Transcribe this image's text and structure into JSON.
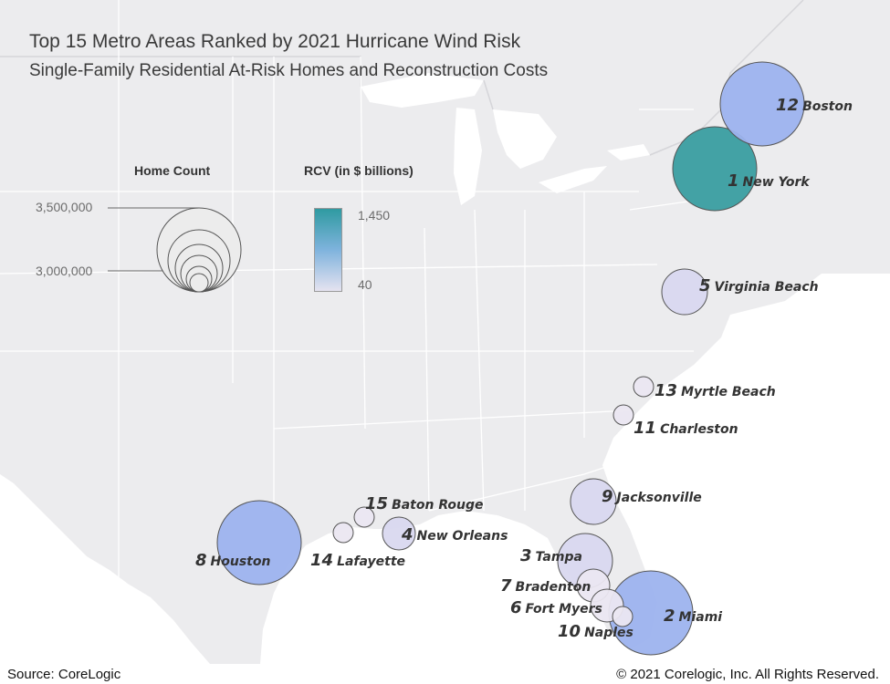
{
  "title": "Top 15 Metro Areas Ranked by 2021 Hurricane Wind Risk",
  "subtitle": "Single-Family Residential At-Risk Homes and Reconstruction Costs",
  "legend": {
    "home_count_title": "Home Count",
    "home_count_max": "3,500,000",
    "home_count_min": "3,000,000",
    "rcv_title": "RCV (in $ billions)",
    "rcv_max": "1,450",
    "rcv_min": "40",
    "color_high": "#2e9aa0",
    "color_mid": "#9aaeea",
    "color_low": "#e6e3f0"
  },
  "metros": [
    {
      "rank": "1",
      "name": "New York",
      "tone": "teal"
    },
    {
      "rank": "2",
      "name": "Miami",
      "tone": "blue"
    },
    {
      "rank": "3",
      "name": "Tampa",
      "tone": "lavender"
    },
    {
      "rank": "4",
      "name": "New Orleans",
      "tone": "lavender"
    },
    {
      "rank": "5",
      "name": "Virginia Beach",
      "tone": "lavender"
    },
    {
      "rank": "6",
      "name": "Fort Myers",
      "tone": "pale"
    },
    {
      "rank": "7",
      "name": "Bradenton",
      "tone": "pale"
    },
    {
      "rank": "8",
      "name": "Houston",
      "tone": "blue"
    },
    {
      "rank": "9",
      "name": "Jacksonville",
      "tone": "lavender"
    },
    {
      "rank": "10",
      "name": "Naples",
      "tone": "pale"
    },
    {
      "rank": "11",
      "name": "Charleston",
      "tone": "pale"
    },
    {
      "rank": "12",
      "name": "Boston",
      "tone": "blue"
    },
    {
      "rank": "13",
      "name": "Myrtle Beach",
      "tone": "pale"
    },
    {
      "rank": "14",
      "name": "Lafayette",
      "tone": "pale"
    },
    {
      "rank": "15",
      "name": "Baton Rouge",
      "tone": "pale"
    }
  ],
  "tones": {
    "teal": "#3a9ea0",
    "blue": "#9db3ee",
    "lavender": "#d9d8ef",
    "pale": "#ebe7f1"
  },
  "footer": {
    "source": "Source: CoreLogic",
    "copyright": "© 2021 Corelogic, Inc. All Rights Reserved."
  }
}
